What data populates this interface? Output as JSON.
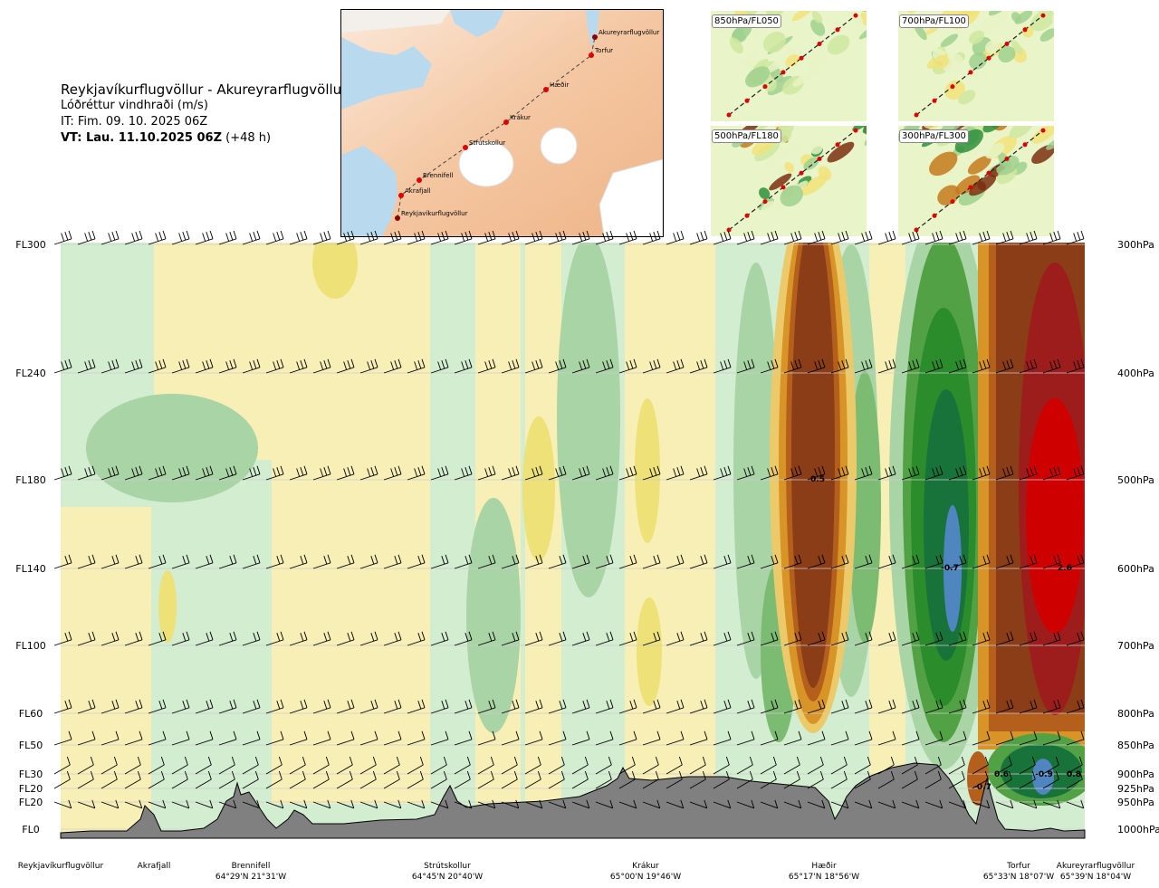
{
  "header": {
    "route": "Reykjavíkurflugvöllur - Akureyrarflugvöllur",
    "variable": "Lóðréttur vindhraði (m/s)",
    "issue_time": "IT: Fim. 09. 10. 2025 06Z",
    "valid_time_bold": "VT: Lau. 11.10.2025 06Z",
    "valid_time_offset": "(+48 h)"
  },
  "map": {
    "route_points": [
      "Reykjavíkurflugvöllur",
      "Akrafjall",
      "Brennifell",
      "Strútskollur",
      "Krákur",
      "Hæðir",
      "Torfur",
      "Akureyrarflugvöllur"
    ]
  },
  "insets": [
    "850hPa/FL050",
    "700hPa/FL100",
    "500hPa/FL180",
    "300hPa/FL300"
  ],
  "chart_data": {
    "type": "heatmap",
    "title": "Lóðréttur vindhraði (m/s)",
    "left_axis_labels": [
      "FL300",
      "FL240",
      "FL180",
      "FL140",
      "FL100",
      "FL60",
      "FL50",
      "FL30",
      "FL20",
      "FL20",
      "FL0"
    ],
    "right_axis_labels": [
      "300hPa",
      "400hPa",
      "500hPa",
      "600hPa",
      "700hPa",
      "800hPa",
      "850hPa",
      "900hPa",
      "925hPa",
      "950hPa",
      "1000hPa"
    ],
    "pressure_levels_hpa": [
      300,
      400,
      500,
      600,
      700,
      800,
      850,
      900,
      925,
      950,
      1000
    ],
    "location_labels": [
      {
        "name": "Reykjavíkurflugvöllur",
        "coord": ""
      },
      {
        "name": "Akrafjall",
        "coord": ""
      },
      {
        "name": "Brennifell",
        "coord": "64°29'N 21°31'W"
      },
      {
        "name": "Strútskollur",
        "coord": "64°45'N 20°40'W"
      },
      {
        "name": "Krákur",
        "coord": "65°00'N 19°46'W"
      },
      {
        "name": "Hæðir",
        "coord": "65°17'N 18°56'W"
      },
      {
        "name": "Torfur",
        "coord": "65°33'N 18°07'W"
      },
      {
        "name": "Akureyrarflugvöllur",
        "coord": "65°39'N 18°04'W"
      }
    ],
    "annotations": [
      "0.5",
      "-0.7",
      "2.6",
      "0.6",
      "-0.9",
      "0.8",
      "-0.7"
    ]
  }
}
